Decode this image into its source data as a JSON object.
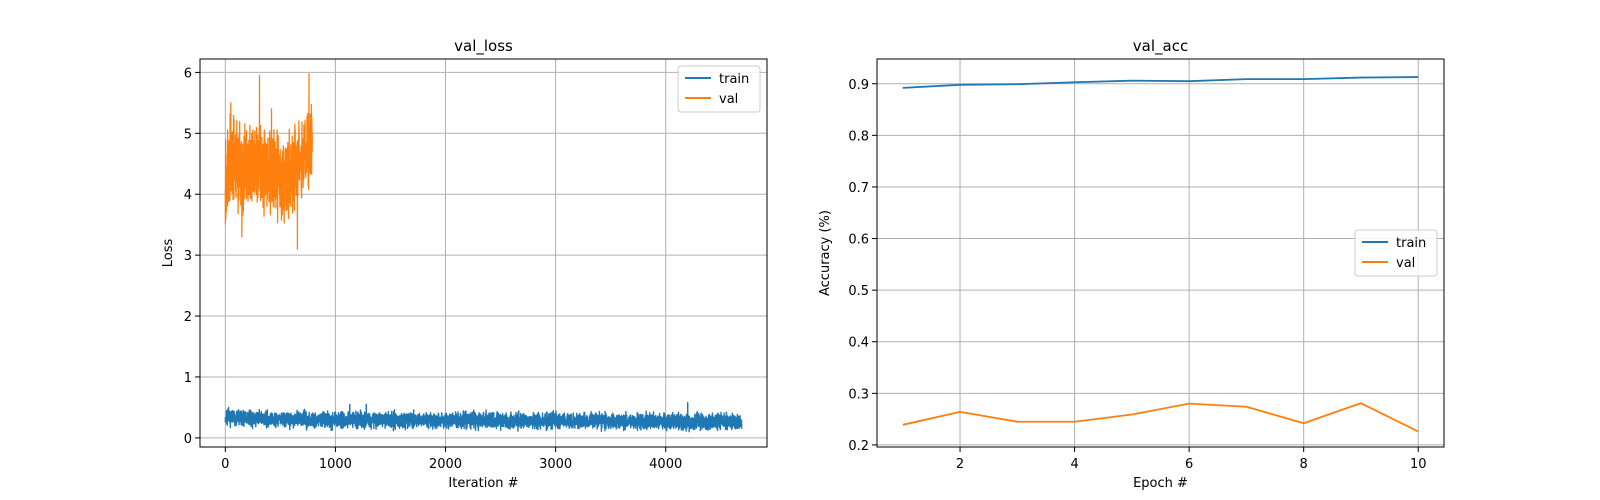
{
  "colors": {
    "train": "#1f77b4",
    "val": "#ff7f0e",
    "grid": "#b0b0b0"
  },
  "chart_data": [
    {
      "type": "line",
      "title": "val_loss",
      "xlabel": "Iteration #",
      "ylabel": "Loss",
      "xlim": [
        -230,
        4920
      ],
      "ylim": [
        -0.15,
        6.22
      ],
      "xticks": [
        0,
        1000,
        2000,
        3000,
        4000
      ],
      "yticks": [
        0,
        1,
        2,
        3,
        4,
        5,
        6
      ],
      "grid": true,
      "legend_position": "upper right",
      "series": [
        {
          "name": "train",
          "color_key": "train",
          "noisy": true,
          "x_range": [
            0,
            4690
          ],
          "points": 4690,
          "seed": 7,
          "amplitude": 0.11,
          "baseline": [
            [
              0,
              0.32
            ],
            [
              500,
              0.31
            ],
            [
              1000,
              0.3
            ],
            [
              2000,
              0.29
            ],
            [
              3000,
              0.28
            ],
            [
              4000,
              0.27
            ],
            [
              4690,
              0.26
            ]
          ],
          "spikes": [
            [
              30,
              0.5
            ],
            [
              120,
              0.46
            ],
            [
              1130,
              0.55
            ],
            [
              1280,
              0.55
            ],
            [
              4200,
              0.58
            ]
          ]
        },
        {
          "name": "val",
          "color_key": "val",
          "noisy": true,
          "x_range": [
            0,
            790
          ],
          "points": 790,
          "seed": 13,
          "amplitude": 0.55,
          "baseline": [
            [
              0,
              4.4
            ],
            [
              100,
              4.5
            ],
            [
              200,
              4.4
            ],
            [
              300,
              4.5
            ],
            [
              400,
              4.4
            ],
            [
              500,
              4.3
            ],
            [
              600,
              4.3
            ],
            [
              700,
              4.6
            ],
            [
              790,
              5.0
            ]
          ],
          "spikes": [
            [
              5,
              3.6
            ],
            [
              50,
              5.5
            ],
            [
              150,
              3.3
            ],
            [
              310,
              5.95
            ],
            [
              420,
              5.4
            ],
            [
              655,
              3.1
            ],
            [
              760,
              5.98
            ]
          ]
        }
      ]
    },
    {
      "type": "line",
      "title": "val_acc",
      "xlabel": "Epoch #",
      "ylabel": "Accuracy (%)",
      "xlim": [
        0.55,
        10.45
      ],
      "ylim": [
        0.196,
        0.948
      ],
      "xticks": [
        2,
        4,
        6,
        8,
        10
      ],
      "yticks": [
        0.2,
        0.3,
        0.4,
        0.5,
        0.6,
        0.7,
        0.8,
        0.9
      ],
      "grid": true,
      "legend_position": "center right",
      "x": [
        1,
        2,
        3,
        4,
        5,
        6,
        7,
        8,
        9,
        10
      ],
      "series": [
        {
          "name": "train",
          "color_key": "train",
          "values": [
            0.892,
            0.898,
            0.899,
            0.903,
            0.906,
            0.905,
            0.909,
            0.909,
            0.912,
            0.913
          ]
        },
        {
          "name": "val",
          "color_key": "val",
          "values": [
            0.239,
            0.264,
            0.245,
            0.245,
            0.259,
            0.28,
            0.274,
            0.242,
            0.281,
            0.226
          ]
        }
      ]
    }
  ]
}
